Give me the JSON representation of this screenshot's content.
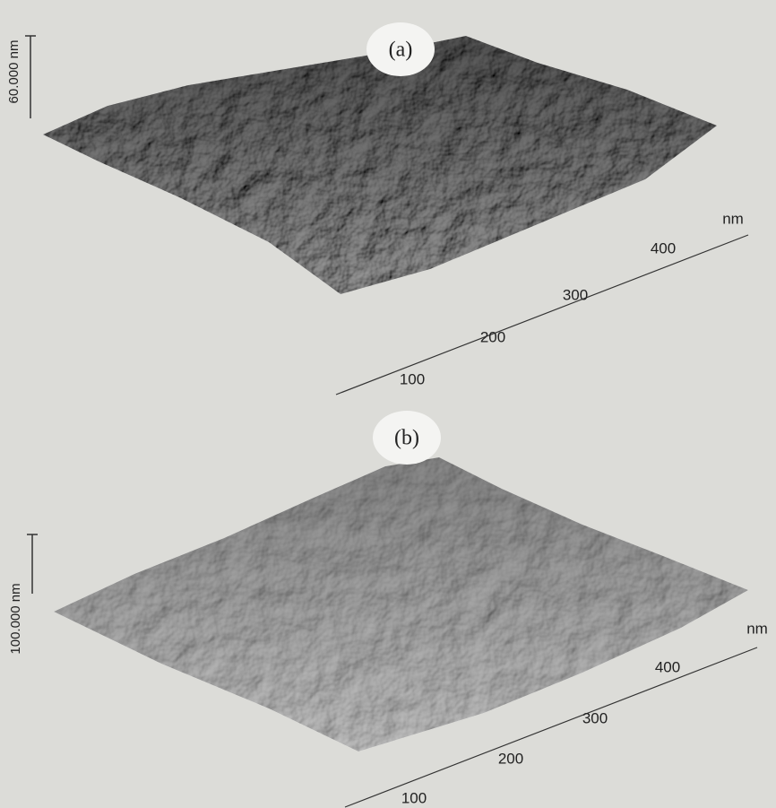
{
  "panels": [
    {
      "label": "(a)",
      "z_label": "60.000 nm",
      "axis_unit": "nm",
      "axis_ticks": [
        "400",
        "300",
        "200",
        "100"
      ]
    },
    {
      "label": "(b)",
      "z_label": "100.000 nm",
      "axis_unit": "nm",
      "axis_ticks": [
        "400",
        "300",
        "200",
        "100"
      ]
    }
  ]
}
